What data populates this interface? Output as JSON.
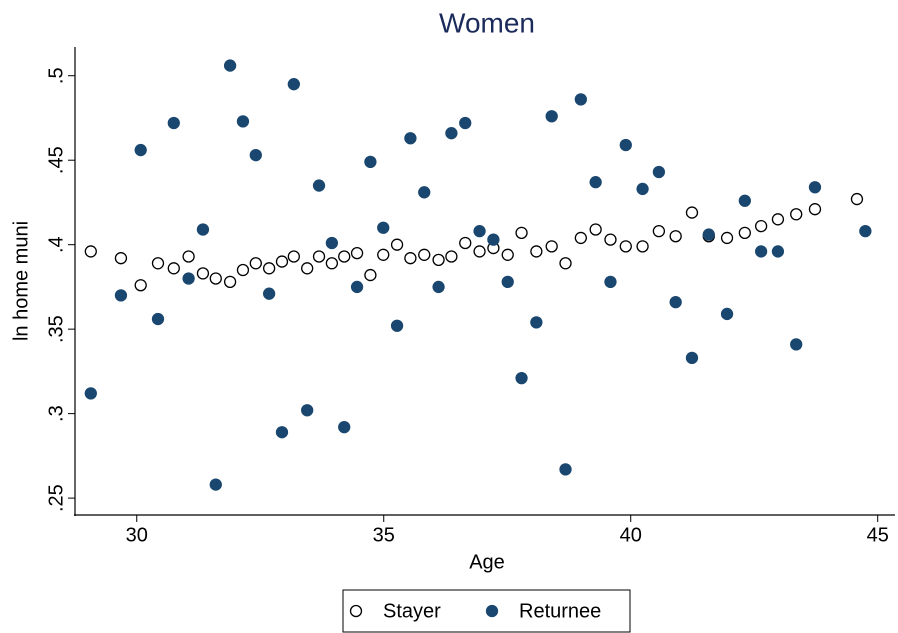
{
  "chart_data": {
    "type": "scatter",
    "title": "Women",
    "x_label": "Age",
    "y_label": "ln home muni",
    "xlim": [
      28.75,
      45.35
    ],
    "ylim": [
      0.24,
      0.517
    ],
    "xticks": [
      30,
      35,
      40,
      45
    ],
    "yticks": [
      {
        "value": 0.25,
        "label": ".25"
      },
      {
        "value": 0.3,
        "label": ".3"
      },
      {
        "value": 0.35,
        "label": ".35"
      },
      {
        "value": 0.4,
        "label": ".4"
      },
      {
        "value": 0.45,
        "label": ".45"
      },
      {
        "value": 0.5,
        "label": ".5"
      }
    ],
    "legend": "bottom",
    "series": [
      {
        "name": "Stayer",
        "color": "#ffffff",
        "stroke": "#000000",
        "x": [
          29.07,
          29.68,
          30.08,
          30.43,
          30.75,
          31.05,
          31.34,
          31.6,
          31.89,
          32.15,
          32.41,
          32.68,
          32.94,
          33.18,
          33.45,
          33.69,
          33.95,
          34.2,
          34.46,
          34.73,
          34.99,
          35.27,
          35.54,
          35.82,
          36.11,
          36.37,
          36.65,
          36.94,
          37.22,
          37.51,
          37.79,
          38.09,
          38.4,
          38.68,
          38.99,
          39.29,
          39.59,
          39.9,
          40.24,
          40.57,
          40.91,
          41.24,
          41.58,
          41.95,
          42.31,
          42.64,
          42.98,
          43.35,
          43.73,
          44.58
        ],
        "values": [
          0.396,
          0.392,
          0.376,
          0.389,
          0.386,
          0.393,
          0.383,
          0.38,
          0.378,
          0.385,
          0.389,
          0.386,
          0.39,
          0.393,
          0.386,
          0.393,
          0.389,
          0.393,
          0.395,
          0.382,
          0.394,
          0.4,
          0.392,
          0.394,
          0.391,
          0.393,
          0.401,
          0.396,
          0.398,
          0.394,
          0.407,
          0.396,
          0.399,
          0.389,
          0.404,
          0.409,
          0.403,
          0.399,
          0.399,
          0.408,
          0.405,
          0.419,
          0.405,
          0.404,
          0.407,
          0.411,
          0.415,
          0.418,
          0.421,
          0.427
        ]
      },
      {
        "name": "Returnee",
        "color": "#1a476f",
        "stroke": "#1a476f",
        "x": [
          29.07,
          29.68,
          30.08,
          30.43,
          30.75,
          31.05,
          31.34,
          31.6,
          31.89,
          32.15,
          32.41,
          32.68,
          32.94,
          33.18,
          33.45,
          33.69,
          33.95,
          34.2,
          34.46,
          34.73,
          34.99,
          35.27,
          35.54,
          35.82,
          36.11,
          36.37,
          36.65,
          36.94,
          37.22,
          37.51,
          37.79,
          38.09,
          38.4,
          38.68,
          38.99,
          39.29,
          39.59,
          39.9,
          40.24,
          40.57,
          40.91,
          41.24,
          41.58,
          41.95,
          42.31,
          42.64,
          42.98,
          43.35,
          43.73,
          44.75
        ],
        "values": [
          0.312,
          0.37,
          0.456,
          0.356,
          0.472,
          0.38,
          0.409,
          0.258,
          0.506,
          0.473,
          0.453,
          0.371,
          0.289,
          0.495,
          0.302,
          0.435,
          0.401,
          0.292,
          0.375,
          0.449,
          0.41,
          0.352,
          0.463,
          0.431,
          0.375,
          0.466,
          0.472,
          0.408,
          0.403,
          0.378,
          0.321,
          0.354,
          0.476,
          0.267,
          0.486,
          0.437,
          0.378,
          0.459,
          0.433,
          0.443,
          0.366,
          0.333,
          0.406,
          0.359,
          0.426,
          0.396,
          0.396,
          0.341,
          0.434,
          0.408
        ]
      }
    ]
  }
}
